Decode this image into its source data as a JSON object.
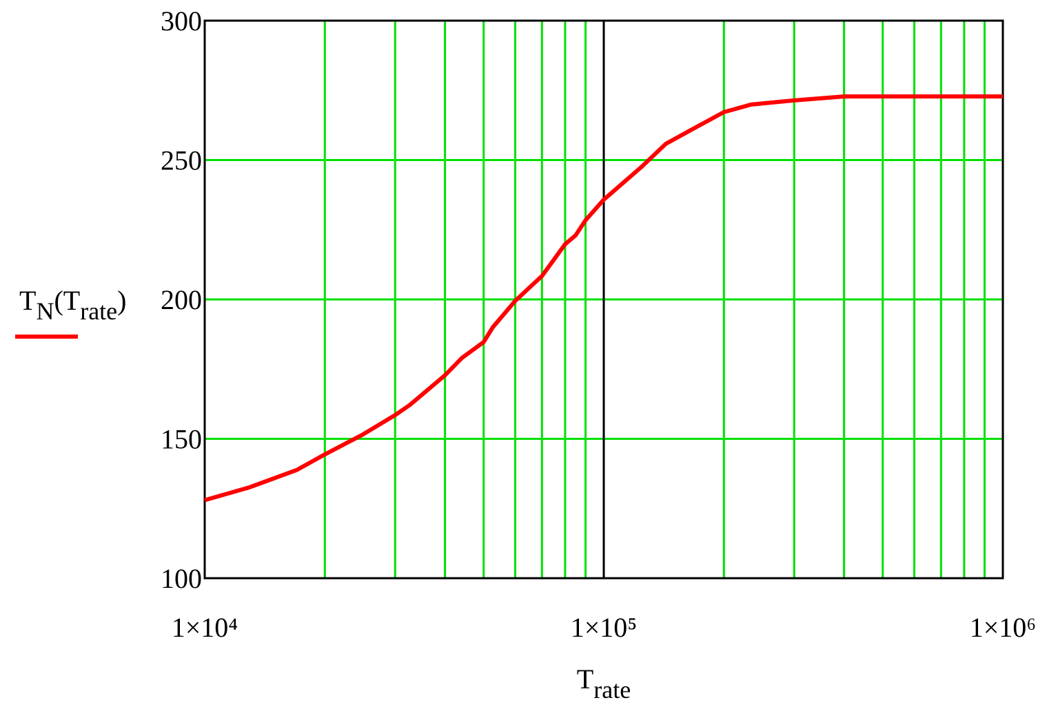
{
  "chart_data": {
    "type": "line",
    "xlabel": [
      {
        "text": "T"
      },
      {
        "text": "rate",
        "sub": true
      }
    ],
    "ylabel": [
      {
        "text": "T"
      },
      {
        "text": "N",
        "sub": true
      },
      {
        "text": "("
      },
      {
        "text": "T"
      },
      {
        "text": "rate",
        "sub": true
      },
      {
        "text": ")"
      }
    ],
    "xscale": "log",
    "xlim": [
      10000,
      1000000
    ],
    "xticks": [
      {
        "value": 10000,
        "label": "1×10⁴"
      },
      {
        "value": 100000,
        "label": "1×10⁵"
      },
      {
        "value": 1000000,
        "label": "1×10⁶"
      }
    ],
    "ylim": [
      100,
      300
    ],
    "yticks": [
      100,
      150,
      200,
      250,
      300
    ],
    "grid": true,
    "minor_grid": true,
    "grid_color": "#00e000",
    "series": [
      {
        "color": "#ff0000",
        "x": [
          10000,
          12950,
          17000,
          20000,
          24800,
          30000,
          32700,
          40000,
          44100,
          50000,
          52700,
          60000,
          70000,
          80000,
          85000,
          90000,
          100000,
          124000,
          143000,
          164000,
          200000,
          234000,
          300000,
          400000,
          1000000
        ],
        "values": [
          128,
          132.6,
          138.8,
          144.4,
          151.4,
          158.5,
          162.2,
          172.8,
          179,
          184.7,
          190,
          199.5,
          208.4,
          219.8,
          223,
          228.4,
          235.8,
          247.4,
          255.8,
          260.5,
          267.2,
          269.9,
          271.4,
          272.8,
          272.8
        ]
      }
    ]
  }
}
